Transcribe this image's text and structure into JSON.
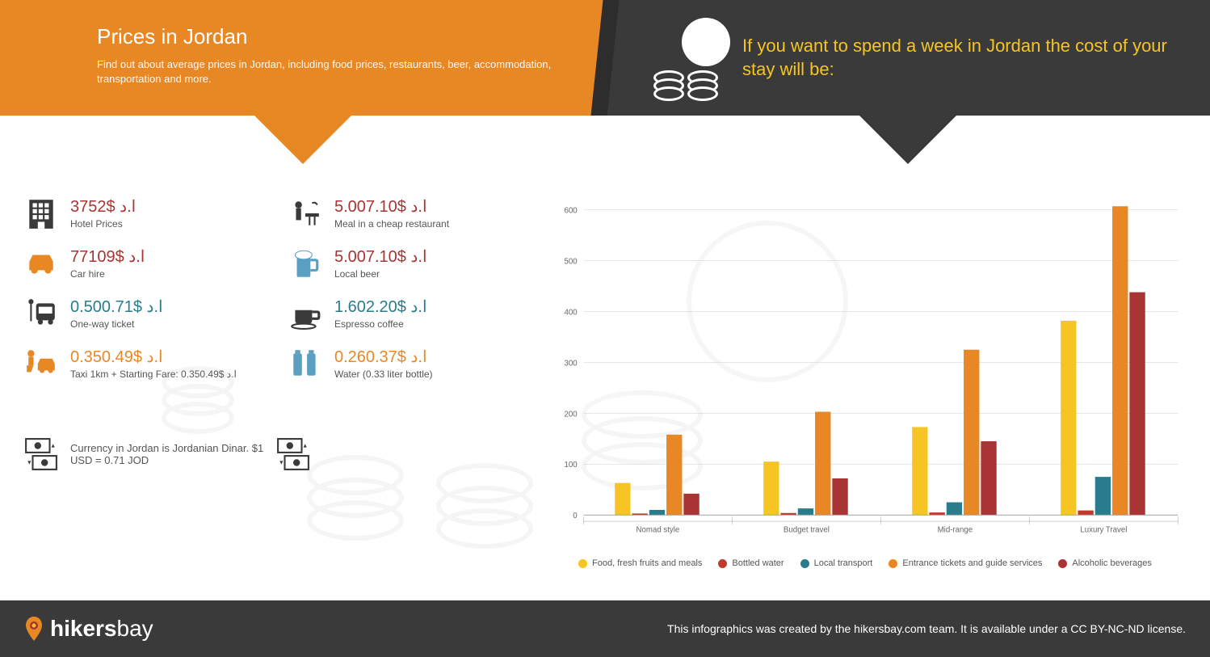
{
  "header": {
    "title": "Prices in Jordan",
    "subtitle": "Find out about average prices in Jordan, including food prices, restaurants, beer, accommodation, transportation and more.",
    "right_heading": "If you want to spend a week in Jordan the cost of your stay will be:"
  },
  "prices": [
    {
      "value": "3752$ ا.د",
      "label": "Hotel Prices",
      "color": "#a93434",
      "icon": "hotel",
      "icon_color": "#3a3a3a"
    },
    {
      "value": "5.007.10$ ا.د",
      "label": "Meal in a cheap restaurant",
      "color": "#a93434",
      "icon": "meal",
      "icon_color": "#3a3a3a"
    },
    {
      "value": "77109$ ا.د",
      "label": "Car hire",
      "color": "#a93434",
      "icon": "car",
      "icon_color": "#e88825"
    },
    {
      "value": "5.007.10$ ا.د",
      "label": "Local beer",
      "color": "#a93434",
      "icon": "beer",
      "icon_color": "#5aa0c0"
    },
    {
      "value": "0.500.71$ ا.د",
      "label": "One-way ticket",
      "color": "#2a7c8c",
      "icon": "bus",
      "icon_color": "#3a3a3a"
    },
    {
      "value": "1.602.20$ ا.د",
      "label": "Espresso coffee",
      "color": "#2a7c8c",
      "icon": "coffee",
      "icon_color": "#3a3a3a"
    },
    {
      "value": "0.350.49$ ا.د",
      "label": "Taxi 1km + Starting Fare: 0.350.49$ ا.د",
      "color": "#e88825",
      "icon": "taxi",
      "icon_color": "#e88825"
    },
    {
      "value": "0.260.37$ ا.د",
      "label": "Water (0.33 liter bottle)",
      "color": "#e88825",
      "icon": "water",
      "icon_color": "#5aa0c0"
    }
  ],
  "currency_note": "Currency in Jordan is Jordanian Dinar. $1 USD = 0.71 JOD",
  "chart": {
    "type": "bar",
    "categories": [
      "Nomad style",
      "Budget travel",
      "Mid-range",
      "Luxury Travel"
    ],
    "ylim": [
      0,
      600
    ],
    "ytick_step": 100,
    "background_color": "#ffffff",
    "grid_color": "#cccccc",
    "axis_fontsize": 10,
    "series": [
      {
        "name": "Food, fresh fruits and meals",
        "color": "#f6c523",
        "values": [
          63,
          105,
          173,
          382
        ]
      },
      {
        "name": "Bottled water",
        "color": "#c23a2e",
        "values": [
          3,
          4,
          5,
          9
        ]
      },
      {
        "name": "Local transport",
        "color": "#2a7c8c",
        "values": [
          10,
          13,
          25,
          75
        ]
      },
      {
        "name": "Entrance tickets and guide services",
        "color": "#e88825",
        "values": [
          158,
          203,
          325,
          607
        ]
      },
      {
        "name": "Alcoholic beverages",
        "color": "#a93434",
        "values": [
          42,
          72,
          145,
          438
        ]
      }
    ]
  },
  "footer": {
    "brand_bold": "hikers",
    "brand_light": "bay",
    "credit": "This infographics was created by the hikersbay.com team. It is available under a CC BY-NC-ND license."
  }
}
